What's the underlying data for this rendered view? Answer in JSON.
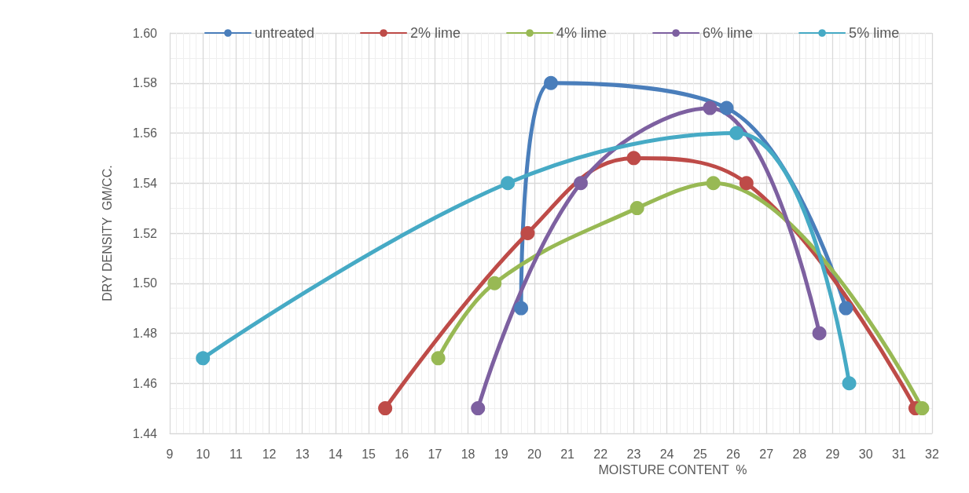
{
  "chart_data": {
    "type": "line",
    "xlabel": "MOISTURE CONTENT  %",
    "ylabel": "DRY DENSITY  GM/CC.",
    "xlim": [
      9,
      32
    ],
    "xticks": [
      9,
      10,
      11,
      12,
      13,
      14,
      15,
      16,
      17,
      18,
      19,
      20,
      21,
      22,
      23,
      24,
      25,
      26,
      27,
      28,
      29,
      30,
      31,
      32
    ],
    "ylim": [
      1.44,
      1.6
    ],
    "yticks": [
      {
        "value": 1.44,
        "label": "1.44"
      },
      {
        "value": 1.46,
        "label": "1.46"
      },
      {
        "value": 1.48,
        "label": "1.48"
      },
      {
        "value": 1.5,
        "label": "1.50"
      },
      {
        "value": 1.52,
        "label": "1.52"
      },
      {
        "value": 1.54,
        "label": "1.54"
      },
      {
        "value": 1.56,
        "label": "1.56"
      },
      {
        "value": 1.58,
        "label": "1.58"
      },
      {
        "value": 1.6,
        "label": "1.60"
      }
    ],
    "grid": true,
    "legend": "top",
    "marker": "circle",
    "line_style": "solid",
    "series": [
      {
        "name": "untreated",
        "color": "#4a7ebb",
        "x": [
          19.6,
          20.5,
          25.8,
          29.4
        ],
        "values": [
          1.49,
          1.58,
          1.57,
          1.49
        ]
      },
      {
        "name": "2% lime",
        "color": "#be4b48",
        "x": [
          15.5,
          19.8,
          23.0,
          26.4,
          31.5
        ],
        "values": [
          1.45,
          1.52,
          1.55,
          1.54,
          1.45
        ]
      },
      {
        "name": "4% lime",
        "color": "#98b954",
        "x": [
          17.1,
          18.8,
          23.1,
          25.4,
          31.7
        ],
        "values": [
          1.47,
          1.5,
          1.53,
          1.54,
          1.45
        ]
      },
      {
        "name": "6% lime",
        "color": "#7d60a0",
        "x": [
          18.3,
          21.4,
          25.3,
          28.6
        ],
        "values": [
          1.45,
          1.54,
          1.57,
          1.48
        ]
      },
      {
        "name": "5% lime",
        "color": "#46aac5",
        "x": [
          10.0,
          19.2,
          26.1,
          29.5
        ],
        "values": [
          1.47,
          1.54,
          1.56,
          1.46
        ]
      }
    ]
  }
}
